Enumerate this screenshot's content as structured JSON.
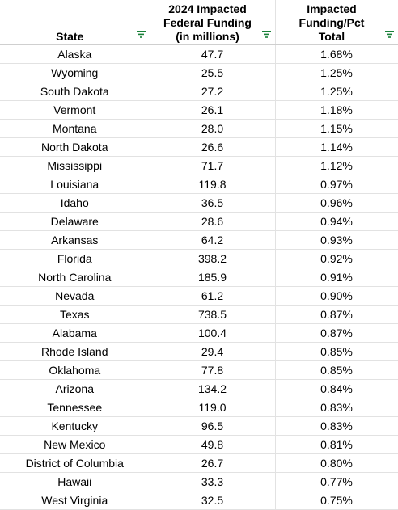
{
  "headers": [
    {
      "label": "State"
    },
    {
      "label": "2024 Impacted\nFederal Funding\n(in millions)"
    },
    {
      "label": "Impacted\nFunding/Pct\nTotal"
    }
  ],
  "rows": [
    {
      "state": "Alaska",
      "funding": "47.7",
      "pct": "1.68%"
    },
    {
      "state": "Wyoming",
      "funding": "25.5",
      "pct": "1.25%"
    },
    {
      "state": "South Dakota",
      "funding": "27.2",
      "pct": "1.25%"
    },
    {
      "state": "Vermont",
      "funding": "26.1",
      "pct": "1.18%"
    },
    {
      "state": "Montana",
      "funding": "28.0",
      "pct": "1.15%"
    },
    {
      "state": "North Dakota",
      "funding": "26.6",
      "pct": "1.14%"
    },
    {
      "state": "Mississippi",
      "funding": "71.7",
      "pct": "1.12%"
    },
    {
      "state": "Louisiana",
      "funding": "119.8",
      "pct": "0.97%"
    },
    {
      "state": "Idaho",
      "funding": "36.5",
      "pct": "0.96%"
    },
    {
      "state": "Delaware",
      "funding": "28.6",
      "pct": "0.94%"
    },
    {
      "state": "Arkansas",
      "funding": "64.2",
      "pct": "0.93%"
    },
    {
      "state": "Florida",
      "funding": "398.2",
      "pct": "0.92%"
    },
    {
      "state": "North Carolina",
      "funding": "185.9",
      "pct": "0.91%"
    },
    {
      "state": "Nevada",
      "funding": "61.2",
      "pct": "0.90%"
    },
    {
      "state": "Texas",
      "funding": "738.5",
      "pct": "0.87%"
    },
    {
      "state": "Alabama",
      "funding": "100.4",
      "pct": "0.87%"
    },
    {
      "state": "Rhode Island",
      "funding": "29.4",
      "pct": "0.85%"
    },
    {
      "state": "Oklahoma",
      "funding": "77.8",
      "pct": "0.85%"
    },
    {
      "state": "Arizona",
      "funding": "134.2",
      "pct": "0.84%"
    },
    {
      "state": "Tennessee",
      "funding": "119.0",
      "pct": "0.83%"
    },
    {
      "state": "Kentucky",
      "funding": "96.5",
      "pct": "0.83%"
    },
    {
      "state": "New Mexico",
      "funding": "49.8",
      "pct": "0.81%"
    },
    {
      "state": "District of Columbia",
      "funding": "26.7",
      "pct": "0.80%"
    },
    {
      "state": "Hawaii",
      "funding": "33.3",
      "pct": "0.77%"
    },
    {
      "state": "West Virginia",
      "funding": "32.5",
      "pct": "0.75%"
    }
  ],
  "colors": {
    "filter_icon": "#188038",
    "grid": "#e2e2e2"
  },
  "icons": {
    "filter": "filter-icon"
  }
}
